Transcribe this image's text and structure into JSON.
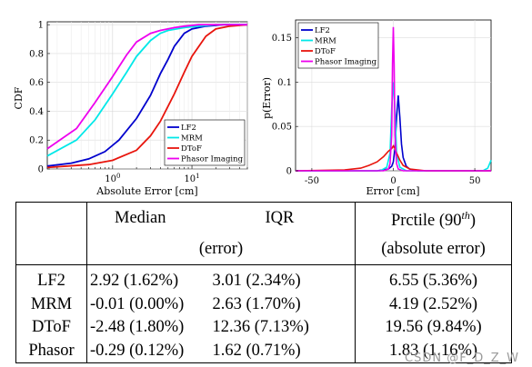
{
  "chart_data": [
    {
      "type": "line",
      "ylabel": "CDF",
      "xlabel": "Absolute Error [cm]",
      "xscale": "log",
      "xlim": [
        0.15,
        50
      ],
      "ylim": [
        0,
        1.02
      ],
      "yticks": [
        0,
        0.2,
        0.4,
        0.6,
        0.8,
        1
      ],
      "ytick_labels": [
        "0",
        "0.2",
        "0.4",
        "0.6",
        "0.8",
        "1"
      ],
      "xticks": [
        1,
        10
      ],
      "legend_position": "bottom-right",
      "series": [
        {
          "name": "LF2",
          "color": "#0000cd",
          "x": [
            0.15,
            0.3,
            0.5,
            0.8,
            1.2,
            2,
            3,
            4,
            5,
            6,
            8,
            10,
            15,
            25,
            50
          ],
          "y": [
            0.02,
            0.04,
            0.07,
            0.12,
            0.2,
            0.35,
            0.51,
            0.66,
            0.76,
            0.85,
            0.94,
            0.97,
            0.99,
            1.0,
            1.0
          ]
        },
        {
          "name": "MRM",
          "color": "#00e8e8",
          "x": [
            0.15,
            0.35,
            0.6,
            1,
            1.5,
            2,
            3,
            4,
            5,
            8,
            12,
            20,
            50
          ],
          "y": [
            0.09,
            0.2,
            0.34,
            0.52,
            0.67,
            0.78,
            0.89,
            0.94,
            0.96,
            0.98,
            0.99,
            1.0,
            1.0
          ]
        },
        {
          "name": "DToF",
          "color": "#e8150d",
          "x": [
            0.15,
            0.5,
            1,
            2,
            3,
            4,
            6,
            8,
            10,
            15,
            20,
            30,
            50
          ],
          "y": [
            0.01,
            0.03,
            0.06,
            0.13,
            0.23,
            0.33,
            0.52,
            0.67,
            0.78,
            0.92,
            0.97,
            0.99,
            1.0
          ]
        },
        {
          "name": "Phasor Imaging",
          "color": "#ee00ee",
          "x": [
            0.15,
            0.35,
            0.6,
            1,
            1.5,
            2,
            3,
            4,
            6,
            8,
            12,
            20,
            50
          ],
          "y": [
            0.14,
            0.28,
            0.46,
            0.64,
            0.79,
            0.88,
            0.94,
            0.96,
            0.98,
            0.99,
            1.0,
            1.0,
            1.0
          ]
        }
      ]
    },
    {
      "type": "line",
      "ylabel": "p(Error)",
      "xlabel": "Error [cm]",
      "xlim": [
        -60,
        60
      ],
      "ylim": [
        0,
        0.17
      ],
      "yticks": [
        0,
        0.05,
        0.1,
        0.15
      ],
      "ytick_labels": [
        "0",
        "0.05",
        "0.1",
        "0.15"
      ],
      "xticks": [
        -50,
        0,
        50
      ],
      "xtick_labels": [
        "-50",
        "0",
        "50"
      ],
      "legend_position": "top-left",
      "series": [
        {
          "name": "LF2",
          "color": "#0000cd",
          "x": [
            -60,
            -10,
            -3,
            -1,
            0,
            1,
            2,
            3,
            4,
            5,
            6,
            8,
            10,
            15,
            60
          ],
          "y": [
            0,
            0,
            0.002,
            0.005,
            0.01,
            0.025,
            0.06,
            0.085,
            0.06,
            0.03,
            0.015,
            0.005,
            0.002,
            0,
            0
          ]
        },
        {
          "name": "MRM",
          "color": "#00e8e8",
          "x": [
            -60,
            -8,
            -4,
            -2,
            -1,
            0,
            1,
            2,
            4,
            8,
            55,
            58,
            60
          ],
          "y": [
            0,
            0,
            0.004,
            0.02,
            0.07,
            0.1,
            0.07,
            0.02,
            0.004,
            0,
            0,
            0.003,
            0.012
          ]
        },
        {
          "name": "DToF",
          "color": "#e8150d",
          "x": [
            -60,
            -30,
            -20,
            -15,
            -10,
            -6,
            -3,
            -1,
            0,
            1,
            2,
            4,
            6,
            10,
            15,
            20,
            60
          ],
          "y": [
            0,
            0.001,
            0.003,
            0.006,
            0.01,
            0.016,
            0.022,
            0.025,
            0.028,
            0.025,
            0.02,
            0.012,
            0.006,
            0.002,
            0.001,
            0,
            0
          ]
        },
        {
          "name": "Phasor Imaging",
          "color": "#ee00ee",
          "x": [
            -60,
            -6,
            -3,
            -2,
            -1,
            -0.5,
            0,
            0.5,
            1,
            2,
            3,
            6,
            60
          ],
          "y": [
            0,
            0,
            0.002,
            0.008,
            0.04,
            0.12,
            0.162,
            0.12,
            0.04,
            0.008,
            0.002,
            0,
            0
          ]
        }
      ]
    }
  ],
  "table": {
    "headers": {
      "median": "Median",
      "iqr": "IQR",
      "error": "(error)",
      "prctile": "Prctile (90",
      "prctile_sup": "th",
      "prctile_close": ")",
      "absolute": "(absolute error)"
    },
    "rows": [
      {
        "label": "LF2",
        "median": "2.92 (1.62%)",
        "iqr": "3.01 (2.34%)",
        "prctile": "6.55 (5.36%)"
      },
      {
        "label": "MRM",
        "median": "-0.01 (0.00%)",
        "iqr": "2.63 (1.70%)",
        "prctile": "4.19 (2.52%)"
      },
      {
        "label": "DToF",
        "median": "-2.48 (1.80%)",
        "iqr": "12.36 (7.13%)",
        "prctile": "19.56 (9.84%)"
      },
      {
        "label": "Phasor",
        "median": "-0.29 (0.12%)",
        "iqr": "1.62 (0.71%)",
        "prctile": "1.83 (1.16%)"
      }
    ]
  },
  "watermark": "CSDN @F_D_Z_W"
}
